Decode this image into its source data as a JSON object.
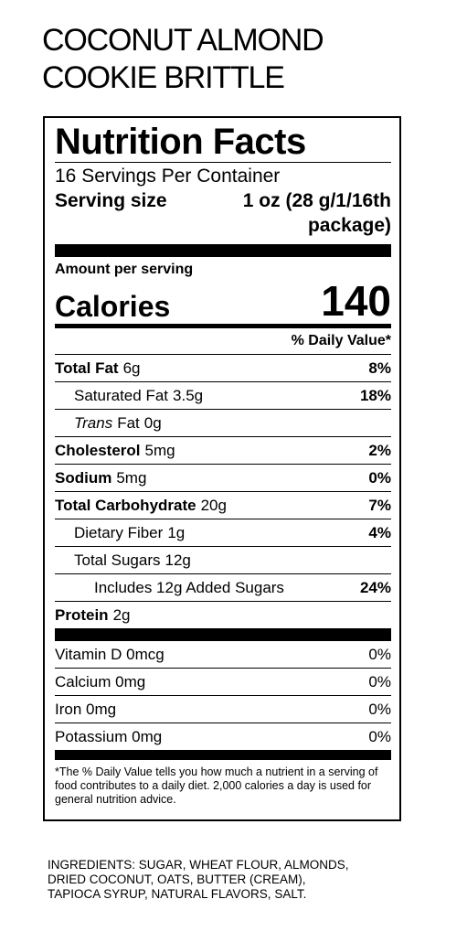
{
  "product": {
    "title_line1": "COCONUT ALMOND",
    "title_line2": "COOKIE BRITTLE"
  },
  "label": {
    "heading": "Nutrition Facts",
    "servings_per_container": "16 Servings Per Container",
    "serving_size_label": "Serving size",
    "serving_size_value_line1": "1 oz (28 g/1/16th",
    "serving_size_value_line2": "package)",
    "amount_per_serving": "Amount per serving",
    "calories_label": "Calories",
    "calories_value": "140",
    "daily_value_header": "% Daily Value*",
    "nutrients": [
      {
        "name": "Total Fat",
        "amount": "6g",
        "dv": "8%"
      },
      {
        "name": "Saturated Fat",
        "amount": "3.5g",
        "dv": "18%"
      },
      {
        "name": "Trans",
        "name_rest": "Fat",
        "amount": "0g",
        "dv": ""
      },
      {
        "name": "Cholesterol",
        "amount": "5mg",
        "dv": "2%"
      },
      {
        "name": "Sodium",
        "amount": "5mg",
        "dv": "0%"
      },
      {
        "name": "Total Carbohydrate",
        "amount": "20g",
        "dv": "7%"
      },
      {
        "name": "Dietary Fiber",
        "amount": "1g",
        "dv": "4%"
      },
      {
        "name": "Total Sugars",
        "amount": "12g",
        "dv": ""
      },
      {
        "name": "Includes 12g Added Sugars",
        "amount": "",
        "dv": "24%"
      },
      {
        "name": "Protein",
        "amount": "2g",
        "dv": ""
      }
    ],
    "vitamins": [
      {
        "name": "Vitamin D",
        "amount": "0mcg",
        "dv": "0%"
      },
      {
        "name": "Calcium",
        "amount": "0mg",
        "dv": "0%"
      },
      {
        "name": "Iron",
        "amount": "0mg",
        "dv": "0%"
      },
      {
        "name": "Potassium",
        "amount": "0mg",
        "dv": "0%"
      }
    ],
    "footnote": "*The % Daily Value tells you how much a nutrient in a serving of food contributes to a daily diet. 2,000 calories a day is used for general nutrition advice."
  },
  "ingredients": {
    "line1": "INGREDIENTS: SUGAR, WHEAT FLOUR, ALMONDS,",
    "line2": "DRIED COCONUT, OATS, BUTTER (CREAM),",
    "line3": "TAPIOCA SYRUP, NATURAL FLAVORS, SALT."
  }
}
